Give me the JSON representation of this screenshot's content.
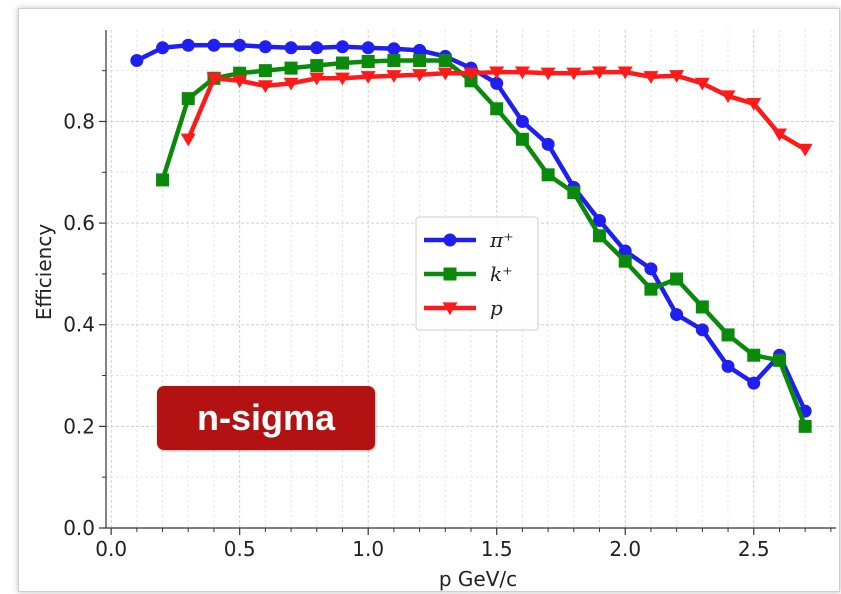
{
  "badge": {
    "label": "n-sigma"
  },
  "chart_data": {
    "type": "line",
    "xlabel": "p  GeV/c",
    "ylabel": "Efficiency",
    "xlim": [
      -0.02,
      2.82
    ],
    "ylim": [
      0.0,
      0.98
    ],
    "xticks": [
      "0.0",
      "0.5",
      "1.0",
      "1.5",
      "2.0",
      "2.5"
    ],
    "yticks": [
      "0.0",
      "0.2",
      "0.4",
      "0.6",
      "0.8"
    ],
    "grid": true,
    "legend_position": "center",
    "series": [
      {
        "name": "π⁺",
        "color": "#1f1ff2",
        "marker": "circle",
        "x": [
          0.1,
          0.2,
          0.3,
          0.4,
          0.5,
          0.6,
          0.7,
          0.8,
          0.9,
          1.0,
          1.1,
          1.2,
          1.3,
          1.4,
          1.5,
          1.6,
          1.7,
          1.8,
          1.9,
          2.0,
          2.1,
          2.2,
          2.3,
          2.4,
          2.5,
          2.6,
          2.7
        ],
        "y": [
          0.92,
          0.945,
          0.95,
          0.95,
          0.95,
          0.947,
          0.945,
          0.945,
          0.947,
          0.945,
          0.943,
          0.94,
          0.928,
          0.905,
          0.875,
          0.8,
          0.755,
          0.67,
          0.605,
          0.545,
          0.51,
          0.42,
          0.39,
          0.318,
          0.285,
          0.34,
          0.23
        ]
      },
      {
        "name": "k⁺",
        "color": "#0a8a0a",
        "marker": "square",
        "x": [
          0.2,
          0.3,
          0.4,
          0.5,
          0.6,
          0.7,
          0.8,
          0.9,
          1.0,
          1.1,
          1.2,
          1.3,
          1.4,
          1.5,
          1.6,
          1.7,
          1.8,
          1.9,
          2.0,
          2.1,
          2.2,
          2.3,
          2.4,
          2.5,
          2.6,
          2.7
        ],
        "y": [
          0.685,
          0.845,
          0.885,
          0.895,
          0.9,
          0.905,
          0.91,
          0.915,
          0.918,
          0.92,
          0.92,
          0.92,
          0.88,
          0.825,
          0.765,
          0.695,
          0.66,
          0.575,
          0.525,
          0.47,
          0.49,
          0.435,
          0.38,
          0.34,
          0.33,
          0.2
        ]
      },
      {
        "name": "p",
        "color": "#ff1a1a",
        "marker": "triangle-down",
        "x": [
          0.3,
          0.4,
          0.5,
          0.6,
          0.7,
          0.8,
          0.9,
          1.0,
          1.1,
          1.2,
          1.3,
          1.4,
          1.5,
          1.6,
          1.7,
          1.8,
          1.9,
          2.0,
          2.1,
          2.2,
          2.3,
          2.4,
          2.5,
          2.6,
          2.7
        ],
        "y": [
          0.765,
          0.885,
          0.88,
          0.87,
          0.875,
          0.885,
          0.885,
          0.888,
          0.89,
          0.892,
          0.895,
          0.895,
          0.897,
          0.897,
          0.895,
          0.895,
          0.897,
          0.897,
          0.888,
          0.89,
          0.875,
          0.85,
          0.835,
          0.775,
          0.745
        ]
      }
    ]
  }
}
